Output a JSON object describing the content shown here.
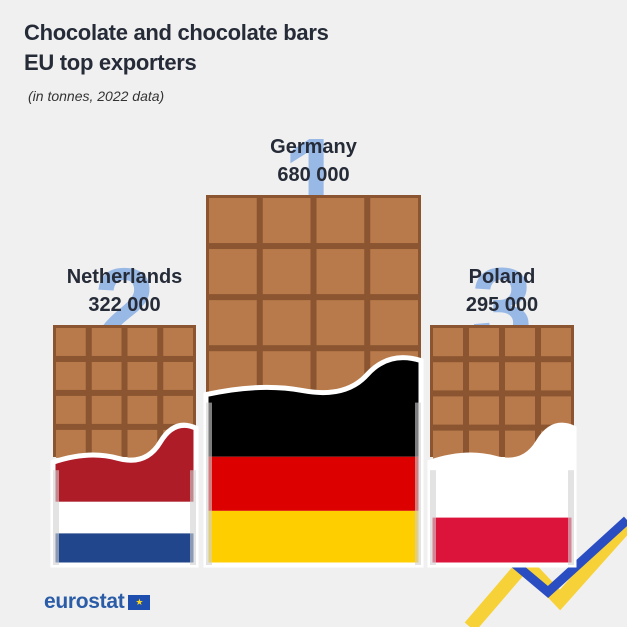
{
  "header": {
    "title_line1": "Chocolate and chocolate bars",
    "title_line2": "EU top exporters",
    "subtitle": "(in tonnes, 2022 data)"
  },
  "footer": {
    "logo_text": "eurostat",
    "flag_icon": "eu-flag-icon"
  },
  "colors": {
    "background": "#f0f0f0",
    "chocolate": "#b87a4a",
    "chocolate_dark": "#8a5530",
    "rank_number": "#8fb3e6",
    "accent_yellow": "#f7d138",
    "accent_blue": "#2b4dc2"
  },
  "chart_data": {
    "type": "bar",
    "title": "Chocolate and chocolate bars EU top exporters",
    "subtitle": "(in tonnes, 2022 data)",
    "categories": [
      "Netherlands",
      "Germany",
      "Poland"
    ],
    "values": [
      322000,
      680000,
      295000
    ],
    "value_labels": [
      "322 000",
      "680 000",
      "295 000"
    ],
    "ranks": [
      "2",
      "1",
      "3"
    ],
    "unit": "tonnes",
    "flags": [
      [
        "#ae1c28",
        "#ffffff",
        "#21468b"
      ],
      [
        "#000000",
        "#dd0000",
        "#ffce00"
      ],
      [
        "#ffffff",
        "#dc143c"
      ]
    ]
  }
}
